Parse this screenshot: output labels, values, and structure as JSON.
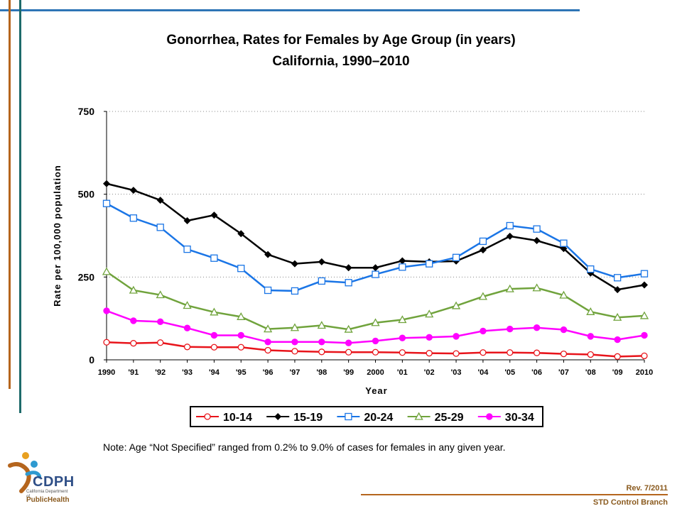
{
  "title_line1": "Gonorrhea, Rates for Females by Age Group (in years)",
  "title_line2": "California, 1990–2010",
  "note": "Note:    Age “Not Specified” ranged from 0.2% to 9.0% of cases for females in any given year.",
  "rev": "Rev. 7/2011",
  "branch": "STD Control Branch",
  "logo": {
    "name": "CDPH",
    "subtext": "California Department of",
    "public_health": "PublicHealth"
  },
  "colors": {
    "accent_blue": "#2e75b6",
    "accent_brown": "#b5651d",
    "accent_teal": "#1e6b6b"
  },
  "chart_data": {
    "type": "line",
    "title": "Gonorrhea, Rates for Females by Age Group (in years) California, 1990–2010",
    "xlabel": "Year",
    "ylabel": "Rate per 100,000 population",
    "ylim": [
      0,
      750
    ],
    "yticks": [
      "0",
      "250",
      "500",
      "750"
    ],
    "grid": "horizontal dotted",
    "legend_position": "bottom",
    "categories": [
      "1990",
      "'91",
      "'92",
      "'93",
      "'94",
      "'95",
      "'96",
      "'97",
      "'98",
      "'99",
      "2000",
      "'01",
      "'02",
      "'03",
      "'04",
      "'05",
      "'06",
      "'07",
      "'08",
      "'09",
      "2010"
    ],
    "series": [
      {
        "name": "10-14",
        "color": "#e8141b",
        "marker": "circle-open",
        "values": [
          53,
          50,
          52,
          39,
          38,
          38,
          29,
          26,
          24,
          23,
          23,
          22,
          20,
          19,
          22,
          22,
          21,
          18,
          16,
          10,
          12
        ]
      },
      {
        "name": "15-19",
        "color": "#000000",
        "marker": "diamond-filled",
        "values": [
          532,
          512,
          482,
          420,
          437,
          381,
          318,
          290,
          296,
          278,
          278,
          299,
          296,
          298,
          332,
          373,
          360,
          336,
          262,
          212,
          226
        ]
      },
      {
        "name": "20-24",
        "color": "#1a75e6",
        "marker": "square-open",
        "values": [
          472,
          428,
          400,
          334,
          307,
          276,
          210,
          208,
          238,
          233,
          258,
          280,
          290,
          309,
          358,
          405,
          395,
          352,
          274,
          248,
          260
        ]
      },
      {
        "name": "25-29",
        "color": "#70a33c",
        "marker": "triangle-open",
        "values": [
          266,
          210,
          196,
          164,
          144,
          130,
          93,
          97,
          104,
          92,
          112,
          121,
          138,
          163,
          191,
          214,
          217,
          195,
          145,
          128,
          133
        ]
      },
      {
        "name": "30-34",
        "color": "#ff00ff",
        "marker": "circle-filled",
        "values": [
          148,
          118,
          115,
          96,
          74,
          74,
          54,
          54,
          54,
          51,
          57,
          66,
          68,
          71,
          87,
          93,
          97,
          91,
          71,
          61,
          74
        ]
      }
    ]
  }
}
